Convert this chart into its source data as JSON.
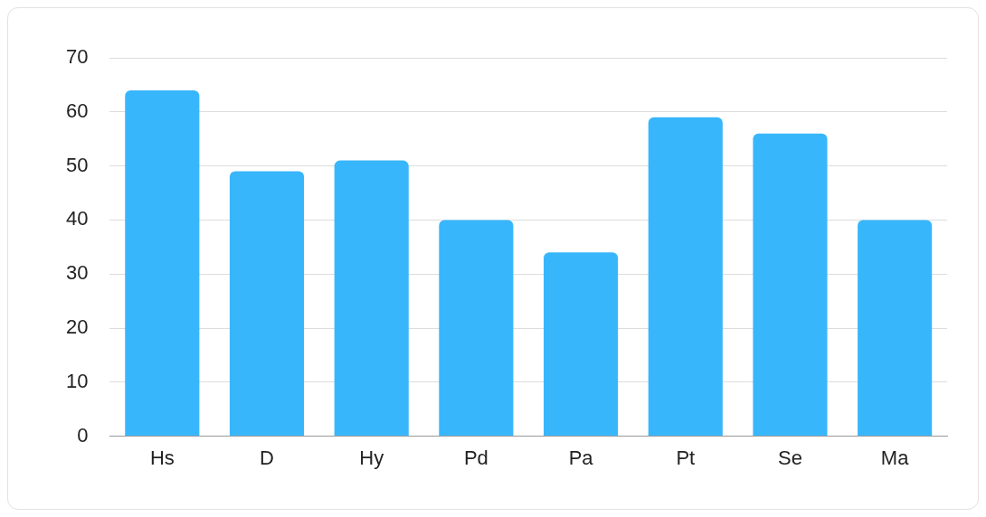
{
  "chart_data": {
    "type": "bar",
    "categories": [
      "Hs",
      "D",
      "Hy",
      "Pd",
      "Pa",
      "Pt",
      "Se",
      "Ma"
    ],
    "values": [
      64,
      49,
      51,
      40,
      34,
      59,
      56,
      40
    ],
    "color": "#38b6fc",
    "ylim": [
      0,
      70
    ],
    "yticks": [
      0,
      10,
      20,
      30,
      40,
      50,
      60,
      70
    ],
    "grid": "y",
    "legend": false
  }
}
